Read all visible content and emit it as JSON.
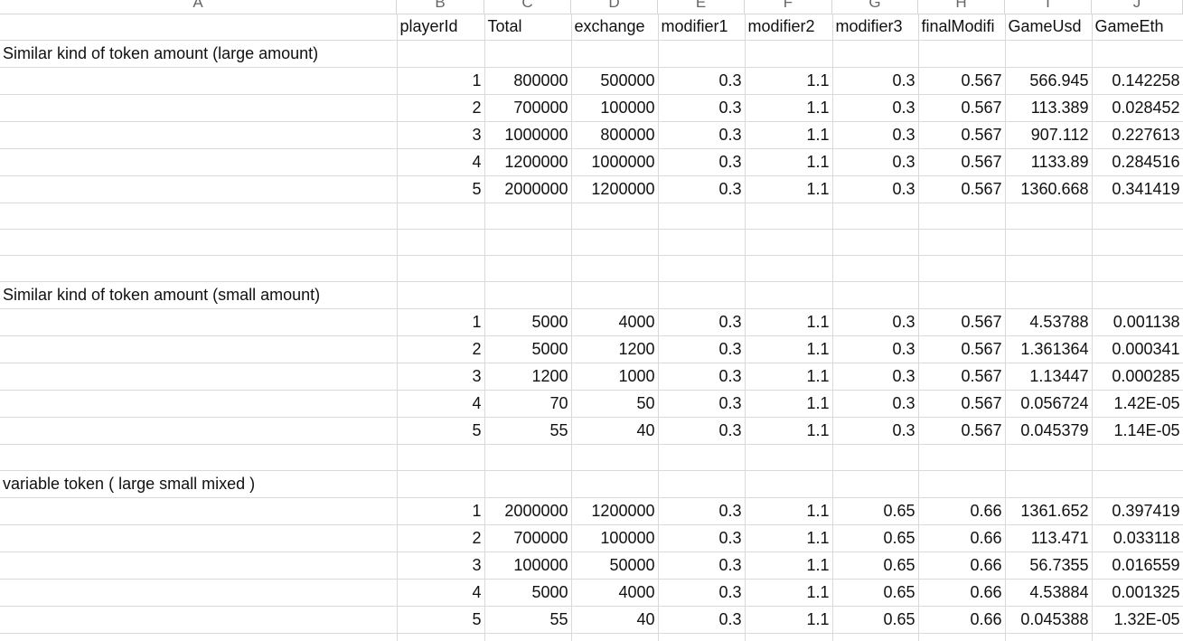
{
  "column_letters": [
    "A",
    "B",
    "C",
    "D",
    "E",
    "F",
    "G",
    "H",
    "I",
    "J"
  ],
  "headers": {
    "playerId": "playerId",
    "total": "Total",
    "exchange": "exchange",
    "modifier1": "modifier1",
    "modifier2": "modifier2",
    "modifier3": "modifier3",
    "finalModifier": "finalModifi",
    "gameUsd": "GameUsd",
    "gameEth": "GameEth"
  },
  "sections": [
    {
      "title": "Similar kind of token amount (large amount)",
      "rows": [
        {
          "playerId": "1",
          "total": "800000",
          "exchange": "500000",
          "modifier1": "0.3",
          "modifier2": "1.1",
          "modifier3": "0.3",
          "finalModifier": "0.567",
          "gameUsd": "566.945",
          "gameEth": "0.142258"
        },
        {
          "playerId": "2",
          "total": "700000",
          "exchange": "100000",
          "modifier1": "0.3",
          "modifier2": "1.1",
          "modifier3": "0.3",
          "finalModifier": "0.567",
          "gameUsd": "113.389",
          "gameEth": "0.028452"
        },
        {
          "playerId": "3",
          "total": "1000000",
          "exchange": "800000",
          "modifier1": "0.3",
          "modifier2": "1.1",
          "modifier3": "0.3",
          "finalModifier": "0.567",
          "gameUsd": "907.112",
          "gameEth": "0.227613"
        },
        {
          "playerId": "4",
          "total": "1200000",
          "exchange": "1000000",
          "modifier1": "0.3",
          "modifier2": "1.1",
          "modifier3": "0.3",
          "finalModifier": "0.567",
          "gameUsd": "1133.89",
          "gameEth": "0.284516"
        },
        {
          "playerId": "5",
          "total": "2000000",
          "exchange": "1200000",
          "modifier1": "0.3",
          "modifier2": "1.1",
          "modifier3": "0.3",
          "finalModifier": "0.567",
          "gameUsd": "1360.668",
          "gameEth": "0.341419"
        }
      ]
    },
    {
      "title": "Similar kind of token amount (small amount)",
      "rows": [
        {
          "playerId": "1",
          "total": "5000",
          "exchange": "4000",
          "modifier1": "0.3",
          "modifier2": "1.1",
          "modifier3": "0.3",
          "finalModifier": "0.567",
          "gameUsd": "4.53788",
          "gameEth": "0.001138"
        },
        {
          "playerId": "2",
          "total": "5000",
          "exchange": "1200",
          "modifier1": "0.3",
          "modifier2": "1.1",
          "modifier3": "0.3",
          "finalModifier": "0.567",
          "gameUsd": "1.361364",
          "gameEth": "0.000341"
        },
        {
          "playerId": "3",
          "total": "1200",
          "exchange": "1000",
          "modifier1": "0.3",
          "modifier2": "1.1",
          "modifier3": "0.3",
          "finalModifier": "0.567",
          "gameUsd": "1.13447",
          "gameEth": "0.000285"
        },
        {
          "playerId": "4",
          "total": "70",
          "exchange": "50",
          "modifier1": "0.3",
          "modifier2": "1.1",
          "modifier3": "0.3",
          "finalModifier": "0.567",
          "gameUsd": "0.056724",
          "gameEth": "1.42E-05"
        },
        {
          "playerId": "5",
          "total": "55",
          "exchange": "40",
          "modifier1": "0.3",
          "modifier2": "1.1",
          "modifier3": "0.3",
          "finalModifier": "0.567",
          "gameUsd": "0.045379",
          "gameEth": "1.14E-05"
        }
      ]
    },
    {
      "title": "variable token ( large small mixed )",
      "rows": [
        {
          "playerId": "1",
          "total": "2000000",
          "exchange": "1200000",
          "modifier1": "0.3",
          "modifier2": "1.1",
          "modifier3": "0.65",
          "finalModifier": "0.66",
          "gameUsd": "1361.652",
          "gameEth": "0.397419"
        },
        {
          "playerId": "2",
          "total": "700000",
          "exchange": "100000",
          "modifier1": "0.3",
          "modifier2": "1.1",
          "modifier3": "0.65",
          "finalModifier": "0.66",
          "gameUsd": "113.471",
          "gameEth": "0.033118"
        },
        {
          "playerId": "3",
          "total": "100000",
          "exchange": "50000",
          "modifier1": "0.3",
          "modifier2": "1.1",
          "modifier3": "0.65",
          "finalModifier": "0.66",
          "gameUsd": "56.7355",
          "gameEth": "0.016559"
        },
        {
          "playerId": "4",
          "total": "5000",
          "exchange": "4000",
          "modifier1": "0.3",
          "modifier2": "1.1",
          "modifier3": "0.65",
          "finalModifier": "0.66",
          "gameUsd": "4.53884",
          "gameEth": "0.001325"
        },
        {
          "playerId": "5",
          "total": "55",
          "exchange": "40",
          "modifier1": "0.3",
          "modifier2": "1.1",
          "modifier3": "0.65",
          "finalModifier": "0.66",
          "gameUsd": "0.045388",
          "gameEth": "1.32E-05"
        }
      ]
    }
  ]
}
